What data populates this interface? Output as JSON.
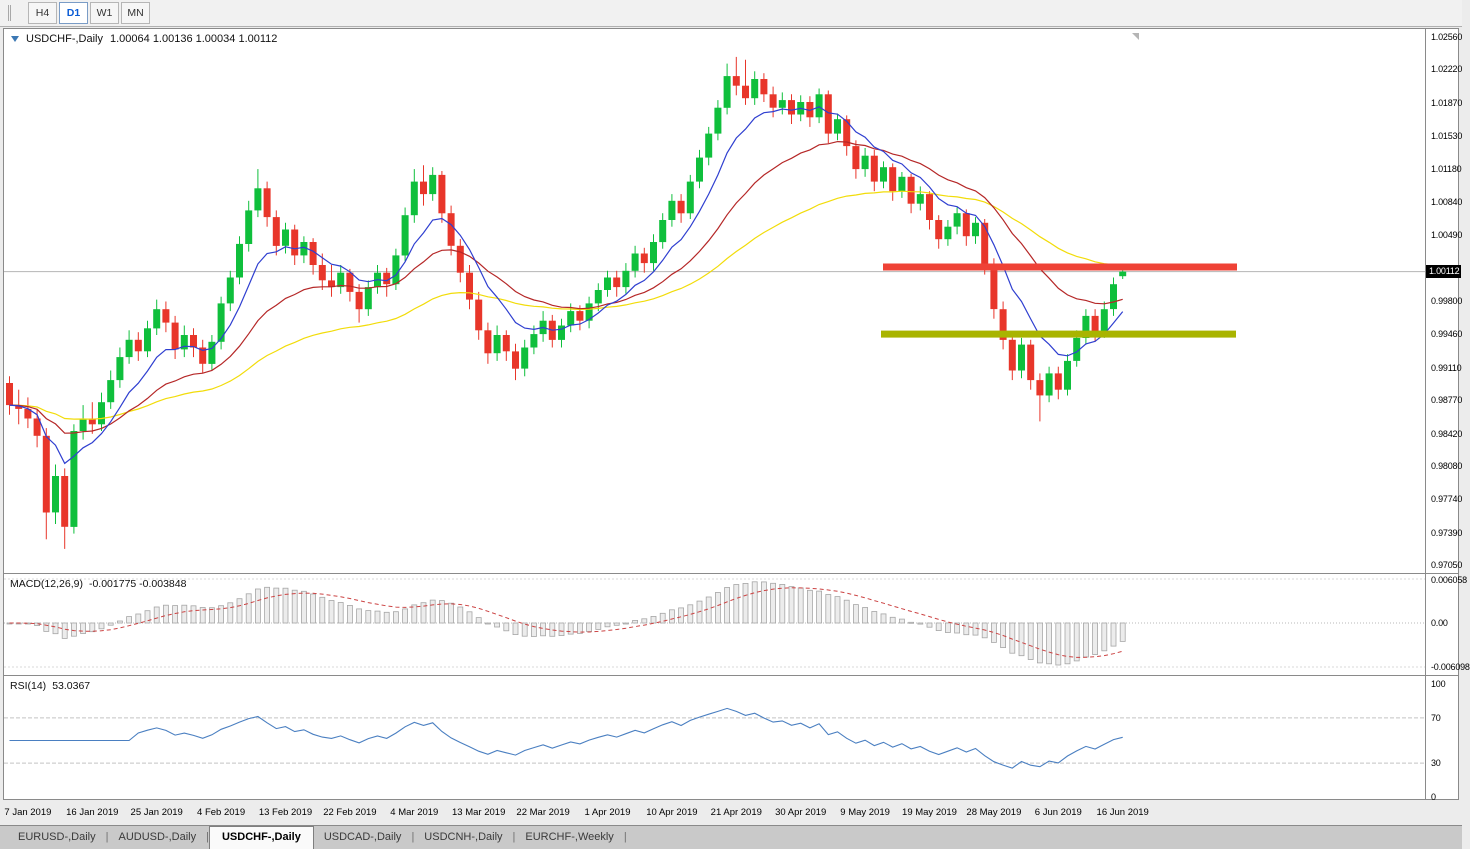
{
  "toolbar": {
    "timeframes": [
      {
        "label": "H4",
        "active": false
      },
      {
        "label": "D1",
        "active": true
      },
      {
        "label": "W1",
        "active": false
      },
      {
        "label": "MN",
        "active": false
      }
    ]
  },
  "header": {
    "title": "USDCHF-,Daily",
    "ohlc": "1.00064  1.00136  1.00034  1.00112"
  },
  "axis": {
    "price_labels": [
      "1.02560",
      "1.02220",
      "1.01870",
      "1.01530",
      "1.01180",
      "1.00840",
      "1.00490",
      "0.99800",
      "0.99460",
      "0.99110",
      "0.98770",
      "0.98420",
      "0.98080",
      "0.97740",
      "0.97390",
      "0.97050"
    ],
    "price_tag": "1.00112"
  },
  "indicators": {
    "macd_label": "MACD(12,26,9)",
    "macd_values": "-0.001775 -0.003848",
    "rsi_label": "RSI(14)",
    "rsi_value": "53.0367"
  },
  "tabs": {
    "items": [
      {
        "label": "EURUSD-,Daily",
        "active": false
      },
      {
        "label": "AUDUSD-,Daily",
        "active": false
      },
      {
        "label": "USDCHF-,Daily",
        "active": true
      },
      {
        "label": "USDCAD-,Daily",
        "active": false
      },
      {
        "label": "USDCNH-,Daily",
        "active": false
      },
      {
        "label": "EURCHF-,Weekly",
        "active": false
      }
    ]
  },
  "chart_data": {
    "type": "candlestick",
    "symbol": "USDCHF-",
    "period": "Daily",
    "y_range": [
      0.9699,
      1.0262
    ],
    "current_price": 1.00112,
    "x_labels": [
      "7 Jan 2019",
      "16 Jan 2019",
      "25 Jan 2019",
      "4 Feb 2019",
      "13 Feb 2019",
      "22 Feb 2019",
      "4 Mar 2019",
      "13 Mar 2019",
      "22 Mar 2019",
      "1 Apr 2019",
      "10 Apr 2019",
      "21 Apr 2019",
      "30 Apr 2019",
      "9 May 2019",
      "19 May 2019",
      "28 May 2019",
      "6 Jun 2019",
      "16 Jun 2019"
    ],
    "x_label_indices": [
      2,
      9,
      16,
      23,
      30,
      37,
      44,
      51,
      58,
      65,
      72,
      79,
      86,
      93,
      100,
      107,
      114,
      121
    ],
    "moving_average_periods": [
      48,
      21,
      8
    ],
    "hlines": [
      {
        "name": "resistance-line",
        "price": 1.0016,
        "x1": 879,
        "x2": 1233,
        "thickness": 7,
        "color": "#ef4236"
      },
      {
        "name": "support-line",
        "price": 0.9946,
        "x1": 877,
        "x2": 1232,
        "thickness": 7,
        "color": "#a9b400"
      }
    ],
    "macd": {
      "fast": 12,
      "slow": 26,
      "signal": 9,
      "value": -0.001775,
      "signal_value": -0.003848,
      "axis_labels": [
        "0.006058",
        "0.00",
        "-0.006098"
      ]
    },
    "rsi": {
      "period": 14,
      "value": 53.0367,
      "levels": [
        70,
        30
      ],
      "axis_labels": [
        "100",
        "70",
        "30",
        "0"
      ]
    },
    "colors": {
      "bull": "#0fbf3c",
      "bear": "#e8362a",
      "ma_fast": "#2f3fd0",
      "ma_mid": "#b52727",
      "ma_slow": "#f2dc0a",
      "macd_signal": "#cc4343",
      "rsi": "#4a7fc1"
    },
    "candles": [
      [
        0.9895,
        0.9902,
        0.9862,
        0.9872
      ],
      [
        0.9872,
        0.9888,
        0.9852,
        0.9868
      ],
      [
        0.9868,
        0.988,
        0.9848,
        0.9858
      ],
      [
        0.9858,
        0.9868,
        0.9828,
        0.984
      ],
      [
        0.984,
        0.9848,
        0.9732,
        0.976
      ],
      [
        0.976,
        0.981,
        0.9748,
        0.9798
      ],
      [
        0.9798,
        0.9806,
        0.9722,
        0.9745
      ],
      [
        0.9745,
        0.9852,
        0.9738,
        0.9845
      ],
      [
        0.9845,
        0.9872,
        0.9836,
        0.9858
      ],
      [
        0.9858,
        0.9875,
        0.9842,
        0.9852
      ],
      [
        0.9852,
        0.9885,
        0.9845,
        0.9875
      ],
      [
        0.9875,
        0.9908,
        0.9868,
        0.9898
      ],
      [
        0.9898,
        0.9932,
        0.989,
        0.9922
      ],
      [
        0.9922,
        0.995,
        0.9915,
        0.994
      ],
      [
        0.994,
        0.9948,
        0.9918,
        0.9928
      ],
      [
        0.9928,
        0.996,
        0.9922,
        0.9952
      ],
      [
        0.9952,
        0.9982,
        0.9945,
        0.9972
      ],
      [
        0.9972,
        0.998,
        0.9948,
        0.9958
      ],
      [
        0.9958,
        0.9965,
        0.992,
        0.993
      ],
      [
        0.993,
        0.9955,
        0.9922,
        0.9945
      ],
      [
        0.9945,
        0.9952,
        0.9922,
        0.9932
      ],
      [
        0.9932,
        0.994,
        0.9905,
        0.9915
      ],
      [
        0.9915,
        0.9945,
        0.9908,
        0.9938
      ],
      [
        0.9938,
        0.9985,
        0.993,
        0.9978
      ],
      [
        0.9978,
        1.0012,
        0.997,
        1.0005
      ],
      [
        1.0005,
        1.0048,
        0.9998,
        1.004
      ],
      [
        1.004,
        1.0085,
        1.0032,
        1.0075
      ],
      [
        1.0075,
        1.0118,
        1.0068,
        1.0098
      ],
      [
        1.0098,
        1.0105,
        1.0058,
        1.0068
      ],
      [
        1.0068,
        1.0075,
        1.0028,
        1.0038
      ],
      [
        1.0038,
        1.0062,
        1.003,
        1.0055
      ],
      [
        1.0055,
        1.006,
        1.0018,
        1.0028
      ],
      [
        1.0028,
        1.0048,
        1.002,
        1.0042
      ],
      [
        1.0042,
        1.0046,
        1.0008,
        1.0018
      ],
      [
        1.0018,
        1.003,
        0.9992,
        1.0002
      ],
      [
        1.0002,
        1.0018,
        0.9985,
        0.9995
      ],
      [
        0.9995,
        1.0018,
        0.9988,
        1.001
      ],
      [
        1.001,
        1.0014,
        0.998,
        0.999
      ],
      [
        0.999,
        0.9998,
        0.9958,
        0.9972
      ],
      [
        0.9972,
        1.0002,
        0.9965,
        0.9995
      ],
      [
        0.9995,
        1.0018,
        0.9988,
        1.001
      ],
      [
        1.001,
        1.0015,
        0.9985,
        0.9998
      ],
      [
        0.9998,
        1.0035,
        0.9992,
        1.0028
      ],
      [
        1.0028,
        1.0078,
        1.0022,
        1.007
      ],
      [
        1.007,
        1.0118,
        1.0062,
        1.0105
      ],
      [
        1.0105,
        1.0122,
        1.008,
        1.0092
      ],
      [
        1.0092,
        1.012,
        1.0085,
        1.0112
      ],
      [
        1.0112,
        1.0116,
        1.0062,
        1.0072
      ],
      [
        1.0072,
        1.008,
        1.0028,
        1.0038
      ],
      [
        1.0038,
        1.0045,
        1.0,
        1.001
      ],
      [
        1.001,
        1.0018,
        0.9972,
        0.9982
      ],
      [
        0.9982,
        0.999,
        0.994,
        0.995
      ],
      [
        0.995,
        0.9958,
        0.9915,
        0.9926
      ],
      [
        0.9926,
        0.9955,
        0.9918,
        0.9945
      ],
      [
        0.9945,
        0.995,
        0.9918,
        0.9928
      ],
      [
        0.9928,
        0.9936,
        0.9898,
        0.991
      ],
      [
        0.991,
        0.994,
        0.9902,
        0.9932
      ],
      [
        0.9932,
        0.9955,
        0.9925,
        0.9946
      ],
      [
        0.9946,
        0.997,
        0.9938,
        0.996
      ],
      [
        0.996,
        0.9966,
        0.9932,
        0.994
      ],
      [
        0.994,
        0.9962,
        0.9932,
        0.9955
      ],
      [
        0.9955,
        0.9978,
        0.9948,
        0.997
      ],
      [
        0.997,
        0.9976,
        0.995,
        0.996
      ],
      [
        0.996,
        0.9985,
        0.9952,
        0.9978
      ],
      [
        0.9978,
        0.9999,
        0.997,
        0.9992
      ],
      [
        0.9992,
        1.0012,
        0.9985,
        1.0005
      ],
      [
        1.0005,
        1.0012,
        0.9985,
        0.9995
      ],
      [
        0.9995,
        1.002,
        0.9988,
        1.0012
      ],
      [
        1.0012,
        1.0038,
        1.0005,
        1.003
      ],
      [
        1.003,
        1.0036,
        1.001,
        1.002
      ],
      [
        1.002,
        1.005,
        1.0012,
        1.0042
      ],
      [
        1.0042,
        1.0072,
        1.0035,
        1.0065
      ],
      [
        1.0065,
        1.0092,
        1.0058,
        1.0085
      ],
      [
        1.0085,
        1.0092,
        1.0062,
        1.0072
      ],
      [
        1.0072,
        1.0112,
        1.0066,
        1.0105
      ],
      [
        1.0105,
        1.0138,
        1.0098,
        1.013
      ],
      [
        1.013,
        1.0162,
        1.0122,
        1.0155
      ],
      [
        1.0155,
        1.019,
        1.0148,
        1.0182
      ],
      [
        1.0182,
        1.0228,
        1.0175,
        1.0215
      ],
      [
        1.0215,
        1.0235,
        1.0195,
        1.0205
      ],
      [
        1.0205,
        1.0232,
        1.0185,
        1.0192
      ],
      [
        1.0192,
        1.022,
        1.0185,
        1.0212
      ],
      [
        1.0212,
        1.0218,
        1.0188,
        1.0196
      ],
      [
        1.0196,
        1.0204,
        1.0172,
        1.0182
      ],
      [
        1.0182,
        1.0198,
        1.0175,
        1.019
      ],
      [
        1.019,
        1.0196,
        1.0165,
        1.0175
      ],
      [
        1.0175,
        1.0195,
        1.0168,
        1.0188
      ],
      [
        1.0188,
        1.0194,
        1.0162,
        1.0172
      ],
      [
        1.0172,
        1.0202,
        1.0166,
        1.0196
      ],
      [
        1.0196,
        1.02,
        1.0145,
        1.0155
      ],
      [
        1.0155,
        1.0176,
        1.0148,
        1.017
      ],
      [
        1.017,
        1.0174,
        1.0132,
        1.0142
      ],
      [
        1.0142,
        1.0148,
        1.0108,
        1.0118
      ],
      [
        1.0118,
        1.014,
        1.011,
        1.0132
      ],
      [
        1.0132,
        1.0138,
        1.0095,
        1.0105
      ],
      [
        1.0105,
        1.0126,
        1.0098,
        1.012
      ],
      [
        1.012,
        1.0124,
        1.0085,
        1.0095
      ],
      [
        1.0095,
        1.0115,
        1.0088,
        1.011
      ],
      [
        1.011,
        1.0113,
        1.0072,
        1.0082
      ],
      [
        1.0082,
        1.01,
        1.0075,
        1.0092
      ],
      [
        1.0092,
        1.0095,
        1.0055,
        1.0065
      ],
      [
        1.0065,
        1.007,
        1.0035,
        1.0045
      ],
      [
        1.0045,
        1.0065,
        1.0038,
        1.0058
      ],
      [
        1.0058,
        1.0078,
        1.005,
        1.0072
      ],
      [
        1.0072,
        1.0076,
        1.0038,
        1.0048
      ],
      [
        1.0048,
        1.0068,
        1.004,
        1.0062
      ],
      [
        1.0062,
        1.0066,
        1.0008,
        1.0018
      ],
      [
        1.0018,
        1.0025,
        0.9962,
        0.9972
      ],
      [
        0.9972,
        0.998,
        0.993,
        0.994
      ],
      [
        0.994,
        0.9948,
        0.9898,
        0.9908
      ],
      [
        0.9908,
        0.9942,
        0.99,
        0.9935
      ],
      [
        0.9935,
        0.994,
        0.9888,
        0.9898
      ],
      [
        0.9898,
        0.9905,
        0.9855,
        0.9882
      ],
      [
        0.9882,
        0.9912,
        0.9875,
        0.9905
      ],
      [
        0.9905,
        0.9912,
        0.9878,
        0.9888
      ],
      [
        0.9888,
        0.9925,
        0.9882,
        0.9918
      ],
      [
        0.9918,
        0.995,
        0.9912,
        0.9942
      ],
      [
        0.9942,
        0.9972,
        0.9935,
        0.9965
      ],
      [
        0.9965,
        0.9972,
        0.9938,
        0.9948
      ],
      [
        0.9948,
        0.998,
        0.9942,
        0.9972
      ],
      [
        0.9972,
        1.0005,
        0.9965,
        0.9998
      ],
      [
        1.00064,
        1.00136,
        1.00034,
        1.00112
      ]
    ]
  }
}
